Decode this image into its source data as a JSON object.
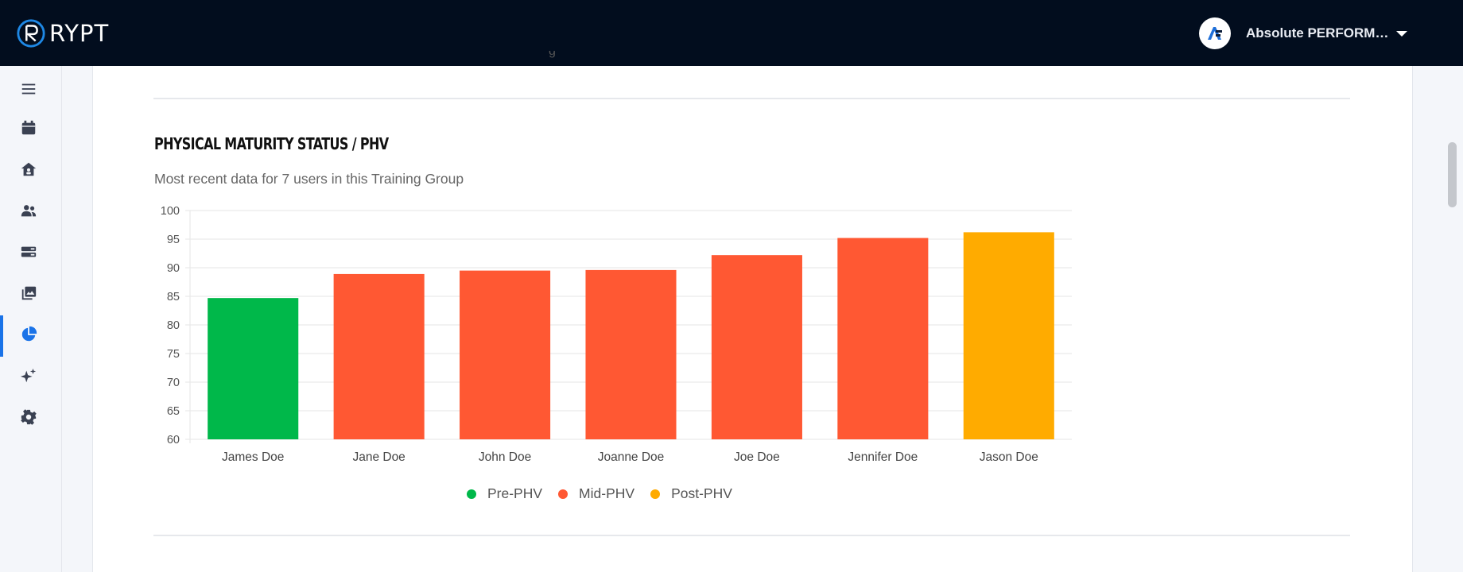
{
  "app": {
    "brand": "RYPT"
  },
  "account": {
    "name": "Absolute PERFORM…"
  },
  "sidebar": {
    "items": [
      {
        "icon": "menu-icon"
      },
      {
        "icon": "calendar-icon"
      },
      {
        "icon": "home-icon"
      },
      {
        "icon": "users-icon"
      },
      {
        "icon": "database-icon"
      },
      {
        "icon": "gallery-icon"
      },
      {
        "icon": "pie-chart-icon",
        "active": true
      },
      {
        "icon": "sparkles-icon"
      },
      {
        "icon": "gear-icon"
      }
    ]
  },
  "section": {
    "cut_text": "g",
    "title": "PHYSICAL MATURITY STATUS / PHV",
    "subtitle": "Most recent data for 7 users in this Training Group"
  },
  "colors": {
    "pre": "#00b84a",
    "mid": "#ff5833",
    "post": "#ffab00",
    "accent": "#1a73e8"
  },
  "chart_data": {
    "type": "bar",
    "title": "PHYSICAL MATURITY STATUS / PHV",
    "categories": [
      "James Doe",
      "Jane Doe",
      "John Doe",
      "Joanne Doe",
      "Joe Doe",
      "Jennifer Doe",
      "Jason Doe"
    ],
    "values": [
      84.7,
      88.9,
      89.5,
      89.6,
      92.2,
      95.2,
      96.2
    ],
    "status": [
      "Pre-PHV",
      "Mid-PHV",
      "Mid-PHV",
      "Mid-PHV",
      "Mid-PHV",
      "Mid-PHV",
      "Post-PHV"
    ],
    "ylim": [
      60,
      100
    ],
    "yticks": [
      100,
      95,
      90,
      85,
      80,
      75,
      70,
      65,
      60
    ],
    "grid": true,
    "legend": [
      {
        "name": "Pre-PHV",
        "color": "#00b84a"
      },
      {
        "name": "Mid-PHV",
        "color": "#ff5833"
      },
      {
        "name": "Post-PHV",
        "color": "#ffab00"
      }
    ],
    "legend_position": "bottom"
  }
}
